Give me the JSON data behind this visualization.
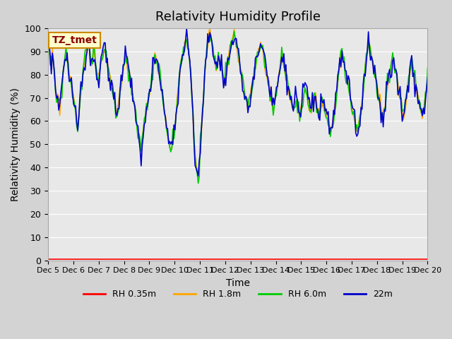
{
  "title": "Relativity Humidity Profile",
  "xlabel": "Time",
  "ylabel": "Relativity Humidity (%)",
  "ylim": [
    0,
    100
  ],
  "annotation": "TZ_tmet",
  "legend": [
    "RH 0.35m",
    "RH 1.8m",
    "RH 6.0m",
    "22m"
  ],
  "colors": {
    "rh035": "#ff0000",
    "rh18": "#ffa500",
    "rh60": "#00cc00",
    "rh22m": "#0000cc"
  },
  "bg_color": "#d3d3d3",
  "plot_bg": "#e8e8e8",
  "x_tick_labels": [
    "Dec 5",
    "Dec 6",
    "Dec 7",
    "Dec 8",
    "Dec 9",
    "Dec 10",
    "Dec 11",
    "Dec 12",
    "Dec 13",
    "Dec 14",
    "Dec 15",
    "Dec 16",
    "Dec 17",
    "Dec 18",
    "Dec 19",
    "Dec 20"
  ],
  "n_points": 360,
  "base_humidity": [
    94,
    92,
    88,
    85,
    90,
    87,
    80,
    75,
    70,
    72,
    68,
    65,
    70,
    72,
    80,
    85,
    88,
    90,
    87,
    85,
    80,
    78,
    75,
    72,
    70,
    68,
    65,
    60,
    58,
    62,
    68,
    72,
    78,
    82,
    85,
    88,
    90,
    93,
    95,
    92,
    88,
    85,
    88,
    90,
    88,
    85,
    80,
    78,
    80,
    82,
    85,
    87,
    89,
    91,
    90,
    88,
    85,
    82,
    80,
    78,
    75,
    72,
    70,
    68,
    65,
    62,
    65,
    68,
    72,
    75,
    80,
    82,
    85,
    88,
    87,
    85,
    82,
    80,
    78,
    75,
    72,
    68,
    65,
    62,
    58,
    55,
    52,
    50,
    48,
    52,
    55,
    60,
    62,
    65,
    68,
    70,
    72,
    75,
    78,
    82,
    85,
    88,
    87,
    85,
    82,
    80,
    78,
    75,
    72,
    68,
    65,
    62,
    58,
    55,
    52,
    50,
    48,
    50,
    52,
    55,
    58,
    62,
    68,
    72,
    78,
    82,
    85,
    88,
    90,
    93,
    95,
    96,
    93,
    90,
    85,
    80,
    72,
    62,
    52,
    45,
    42,
    38,
    36,
    40,
    48,
    55,
    62,
    70,
    78,
    85,
    90,
    95,
    97,
    98,
    96,
    93,
    90,
    87,
    85,
    83,
    85,
    88,
    87,
    85,
    82,
    80,
    78,
    75,
    78,
    82,
    85,
    88,
    90,
    93,
    95,
    97,
    98,
    96,
    93,
    90,
    87,
    85,
    82,
    80,
    78,
    75,
    72,
    70,
    68,
    65,
    68,
    70,
    72,
    75,
    78,
    80,
    82,
    85,
    88,
    90,
    92,
    93,
    92,
    90,
    88,
    85,
    82,
    80,
    78,
    75,
    72,
    70,
    68,
    65,
    68,
    70,
    72,
    75,
    78,
    82,
    85,
    88,
    87,
    85,
    82,
    80,
    78,
    75,
    72,
    70,
    68,
    65,
    65,
    67,
    68,
    70,
    68,
    65,
    63,
    65,
    68,
    70,
    72,
    75,
    73,
    70,
    68,
    65,
    63,
    65,
    68,
    70,
    72,
    70,
    68,
    65,
    63,
    62,
    65,
    67,
    68,
    66,
    65,
    63,
    62,
    60,
    58,
    55,
    57,
    60,
    62,
    65,
    68,
    72,
    78,
    82,
    85,
    88,
    90,
    87,
    85,
    82,
    80,
    78,
    75,
    72,
    70,
    68,
    65,
    62,
    60,
    58,
    55,
    57,
    60,
    62,
    65,
    68,
    72,
    78,
    82,
    88,
    92,
    95,
    93,
    90,
    88,
    85,
    82,
    80,
    78,
    75,
    72,
    70,
    68,
    65,
    63,
    62,
    65,
    68,
    72,
    75,
    78,
    80,
    82,
    85,
    87,
    85,
    82,
    80,
    78,
    75,
    72,
    70,
    68,
    65,
    63,
    65,
    68,
    72,
    75,
    78,
    80,
    82,
    85,
    83,
    80,
    78,
    75,
    73,
    70,
    68,
    65,
    63,
    62,
    65,
    68,
    72,
    75,
    78
  ]
}
